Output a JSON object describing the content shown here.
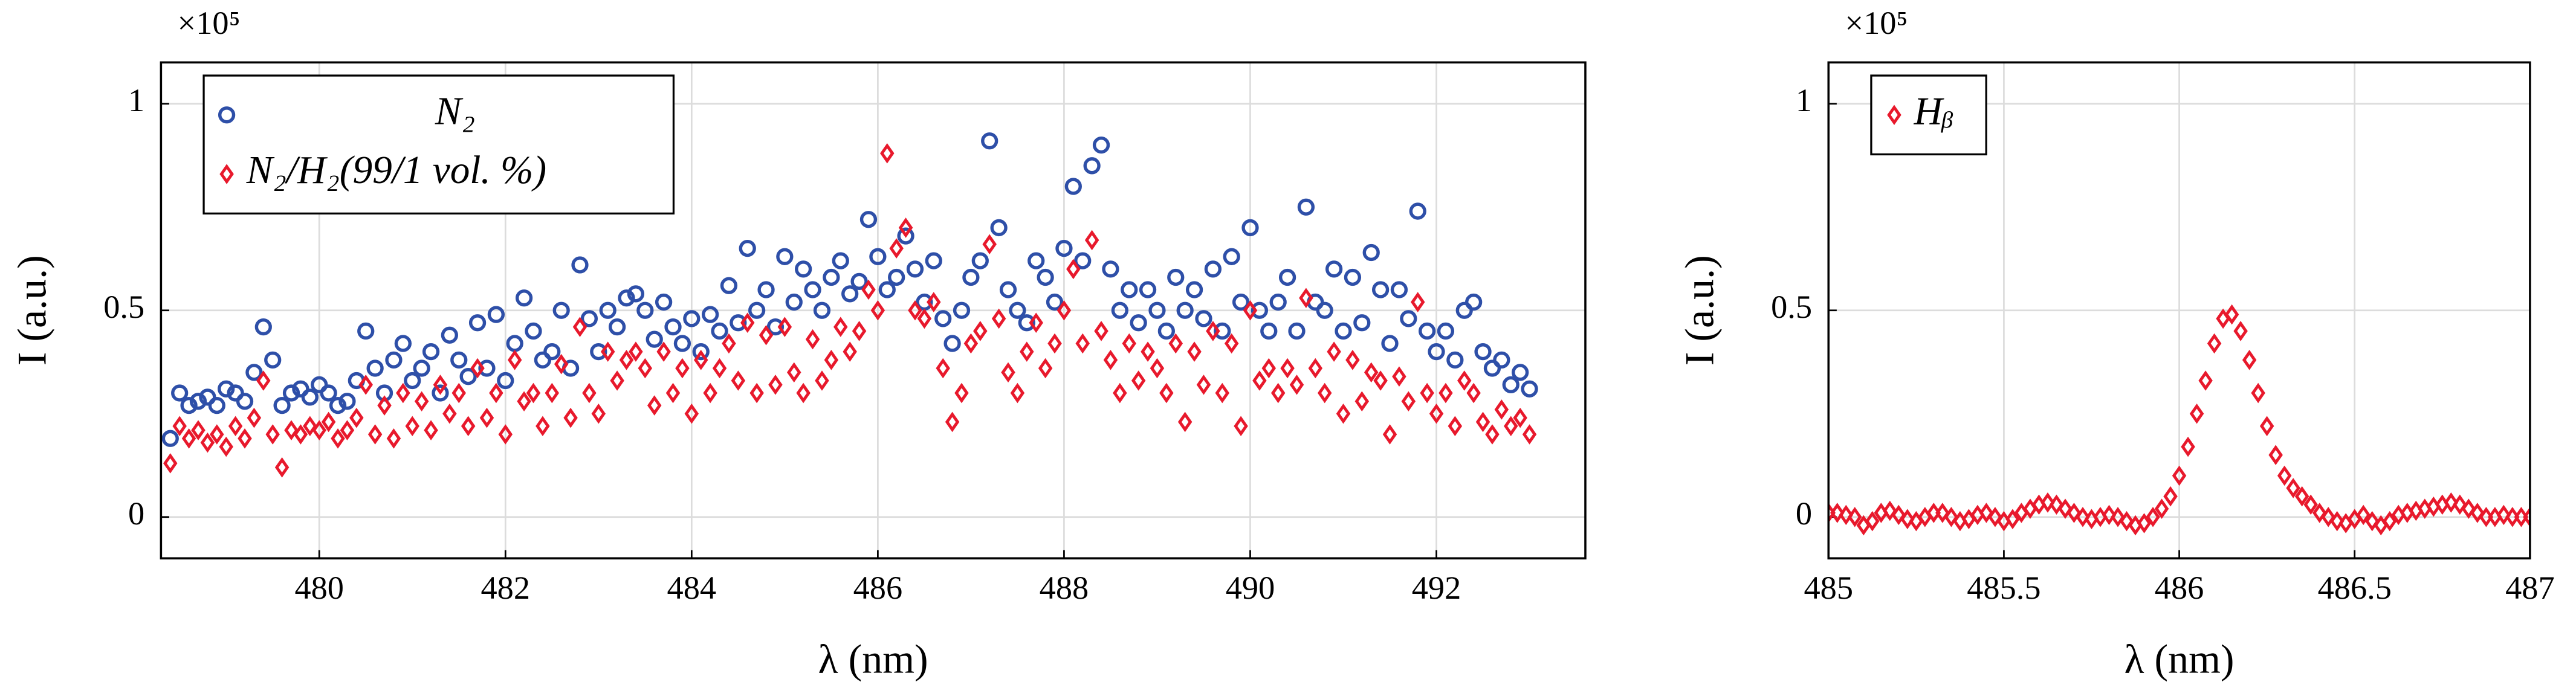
{
  "chart_data": [
    {
      "type": "scatter",
      "xlabel": "λ (nm)",
      "ylabel": "I (a.u.)",
      "y_multiplier": "×10⁵",
      "xlim": [
        478.3,
        493.6
      ],
      "ylim": [
        -0.1,
        1.1
      ],
      "xticks": [
        480,
        482,
        484,
        486,
        488,
        490,
        492
      ],
      "yticks": [
        0,
        0.5,
        1
      ],
      "grid": true,
      "legend": "upper left",
      "x": [
        478.4,
        478.5,
        478.6,
        478.7,
        478.8,
        478.9,
        479.0,
        479.1,
        479.2,
        479.3,
        479.4,
        479.5,
        479.6,
        479.7,
        479.8,
        479.9,
        480.0,
        480.1,
        480.2,
        480.3,
        480.4,
        480.5,
        480.6,
        480.7,
        480.8,
        480.9,
        481.0,
        481.1,
        481.2,
        481.3,
        481.4,
        481.5,
        481.6,
        481.7,
        481.8,
        481.9,
        482.0,
        482.1,
        482.2,
        482.3,
        482.4,
        482.5,
        482.6,
        482.7,
        482.8,
        482.9,
        483.0,
        483.1,
        483.2,
        483.3,
        483.4,
        483.5,
        483.6,
        483.7,
        483.8,
        483.9,
        484.0,
        484.1,
        484.2,
        484.3,
        484.4,
        484.5,
        484.6,
        484.7,
        484.8,
        484.9,
        485.0,
        485.1,
        485.2,
        485.3,
        485.4,
        485.5,
        485.6,
        485.7,
        485.8,
        485.9,
        486.0,
        486.1,
        486.2,
        486.3,
        486.4,
        486.5,
        486.6,
        486.7,
        486.8,
        486.9,
        487.0,
        487.1,
        487.2,
        487.3,
        487.4,
        487.5,
        487.6,
        487.7,
        487.8,
        487.9,
        488.0,
        488.1,
        488.2,
        488.3,
        488.4,
        488.5,
        488.6,
        488.7,
        488.8,
        488.9,
        489.0,
        489.1,
        489.2,
        489.3,
        489.4,
        489.5,
        489.6,
        489.7,
        489.8,
        489.9,
        490.0,
        490.1,
        490.2,
        490.3,
        490.4,
        490.5,
        490.6,
        490.7,
        490.8,
        490.9,
        491.0,
        491.1,
        491.2,
        491.3,
        491.4,
        491.5,
        491.6,
        491.7,
        491.8,
        491.9,
        492.0,
        492.1,
        492.2,
        492.3,
        492.4,
        492.5,
        492.6,
        492.7,
        492.8,
        492.9,
        493.0
      ],
      "series": [
        {
          "name": "N₂",
          "color": "#2e4fa8",
          "marker": "circle",
          "values": [
            0.19,
            0.3,
            0.27,
            0.28,
            0.29,
            0.27,
            0.31,
            0.3,
            0.28,
            0.35,
            0.46,
            0.38,
            0.27,
            0.3,
            0.31,
            0.29,
            0.32,
            0.3,
            0.27,
            0.28,
            0.33,
            0.45,
            0.36,
            0.3,
            0.38,
            0.42,
            0.33,
            0.36,
            0.4,
            0.3,
            0.44,
            0.38,
            0.34,
            0.47,
            0.36,
            0.49,
            0.33,
            0.42,
            0.53,
            0.45,
            0.38,
            0.4,
            0.5,
            0.36,
            0.61,
            0.48,
            0.4,
            0.5,
            0.46,
            0.53,
            0.54,
            0.5,
            0.43,
            0.52,
            0.46,
            0.42,
            0.48,
            0.4,
            0.49,
            0.45,
            0.56,
            0.47,
            0.65,
            0.5,
            0.55,
            0.46,
            0.63,
            0.52,
            0.6,
            0.55,
            0.5,
            0.58,
            0.62,
            0.54,
            0.57,
            0.72,
            0.63,
            0.55,
            0.58,
            0.68,
            0.6,
            0.52,
            0.62,
            0.48,
            0.42,
            0.5,
            0.58,
            0.62,
            0.91,
            0.7,
            0.55,
            0.5,
            0.47,
            0.62,
            0.58,
            0.52,
            0.65,
            0.8,
            0.62,
            0.85,
            0.9,
            0.6,
            0.5,
            0.55,
            0.47,
            0.55,
            0.5,
            0.45,
            0.58,
            0.5,
            0.55,
            0.48,
            0.6,
            0.45,
            0.63,
            0.52,
            0.7,
            0.5,
            0.45,
            0.52,
            0.58,
            0.45,
            0.75,
            0.52,
            0.5,
            0.6,
            0.45,
            0.58,
            0.47,
            0.64,
            0.55,
            0.42,
            0.55,
            0.48,
            0.74,
            0.45,
            0.4,
            0.45,
            0.38,
            0.5,
            0.52,
            0.4,
            0.36,
            0.38,
            0.32,
            0.35,
            0.31
          ]
        },
        {
          "name": "N₂/H₂(99/1 vol. %)",
          "color": "#e8192c",
          "marker": "diamond",
          "values": [
            0.13,
            0.22,
            0.19,
            0.21,
            0.18,
            0.2,
            0.17,
            0.22,
            0.19,
            0.24,
            0.33,
            0.2,
            0.12,
            0.21,
            0.2,
            0.22,
            0.21,
            0.23,
            0.19,
            0.21,
            0.24,
            0.32,
            0.2,
            0.27,
            0.19,
            0.3,
            0.22,
            0.28,
            0.21,
            0.32,
            0.25,
            0.3,
            0.22,
            0.36,
            0.24,
            0.3,
            0.2,
            0.38,
            0.28,
            0.3,
            0.22,
            0.3,
            0.37,
            0.24,
            0.46,
            0.3,
            0.25,
            0.4,
            0.33,
            0.38,
            0.4,
            0.36,
            0.27,
            0.4,
            0.3,
            0.36,
            0.25,
            0.38,
            0.3,
            0.36,
            0.42,
            0.33,
            0.47,
            0.3,
            0.44,
            0.32,
            0.46,
            0.35,
            0.3,
            0.43,
            0.33,
            0.38,
            0.46,
            0.4,
            0.45,
            0.55,
            0.5,
            0.88,
            0.65,
            0.7,
            0.5,
            0.48,
            0.52,
            0.36,
            0.23,
            0.3,
            0.42,
            0.45,
            0.66,
            0.48,
            0.35,
            0.3,
            0.4,
            0.47,
            0.36,
            0.42,
            0.5,
            0.6,
            0.42,
            0.67,
            0.45,
            0.38,
            0.3,
            0.42,
            0.33,
            0.4,
            0.36,
            0.3,
            0.42,
            0.23,
            0.4,
            0.32,
            0.45,
            0.3,
            0.42,
            0.22,
            0.5,
            0.33,
            0.36,
            0.3,
            0.36,
            0.32,
            0.53,
            0.36,
            0.3,
            0.4,
            0.25,
            0.38,
            0.28,
            0.35,
            0.33,
            0.2,
            0.34,
            0.28,
            0.52,
            0.3,
            0.25,
            0.3,
            0.22,
            0.33,
            0.3,
            0.23,
            0.2,
            0.26,
            0.22,
            0.24,
            0.2
          ]
        }
      ]
    },
    {
      "type": "scatter",
      "xlabel": "λ (nm)",
      "ylabel": "I (a.u.)",
      "y_multiplier": "×10⁵",
      "xlim": [
        485,
        487
      ],
      "ylim": [
        -0.1,
        1.1
      ],
      "xticks": [
        485,
        485.5,
        486,
        486.5,
        487
      ],
      "yticks": [
        0,
        0.5,
        1
      ],
      "grid": true,
      "legend": "upper left",
      "x": [
        485,
        485.025,
        485.05,
        485.075,
        485.1,
        485.125,
        485.15,
        485.175,
        485.2,
        485.225,
        485.25,
        485.275,
        485.3,
        485.325,
        485.35,
        485.375,
        485.4,
        485.425,
        485.45,
        485.475,
        485.5,
        485.525,
        485.55,
        485.575,
        485.6,
        485.625,
        485.65,
        485.675,
        485.7,
        485.725,
        485.75,
        485.775,
        485.8,
        485.825,
        485.85,
        485.875,
        485.9,
        485.925,
        485.95,
        485.975,
        486,
        486.025,
        486.05,
        486.075,
        486.1,
        486.125,
        486.15,
        486.175,
        486.2,
        486.225,
        486.25,
        486.275,
        486.3,
        486.325,
        486.35,
        486.375,
        486.4,
        486.425,
        486.45,
        486.475,
        486.5,
        486.525,
        486.55,
        486.575,
        486.6,
        486.625,
        486.65,
        486.675,
        486.7,
        486.725,
        486.75,
        486.775,
        486.8,
        486.825,
        486.85,
        486.875,
        486.9,
        486.925,
        486.95,
        486.975,
        487
      ],
      "series": [
        {
          "name": "Hᵦ",
          "color": "#e8192c",
          "marker": "diamond",
          "values": [
            0.01,
            0.01,
            0.005,
            0,
            -0.02,
            -0.01,
            0.01,
            0.015,
            0.005,
            -0.005,
            -0.01,
            0,
            0.01,
            0.01,
            0,
            -0.01,
            -0.005,
            0.005,
            0.01,
            0,
            -0.01,
            -0.005,
            0.01,
            0.02,
            0.03,
            0.035,
            0.03,
            0.02,
            0.01,
            0,
            -0.005,
            0,
            0.005,
            0,
            -0.01,
            -0.02,
            -0.015,
            0,
            0.02,
            0.05,
            0.1,
            0.17,
            0.25,
            0.33,
            0.42,
            0.48,
            0.49,
            0.45,
            0.38,
            0.3,
            0.22,
            0.15,
            0.1,
            0.07,
            0.05,
            0.03,
            0.01,
            0,
            -0.01,
            -0.015,
            -0.005,
            0.005,
            -0.01,
            -0.02,
            -0.01,
            0.005,
            0.01,
            0.015,
            0.02,
            0.025,
            0.03,
            0.035,
            0.03,
            0.02,
            0.01,
            0,
            0,
            0.005,
            0,
            0,
            0
          ]
        }
      ]
    }
  ]
}
